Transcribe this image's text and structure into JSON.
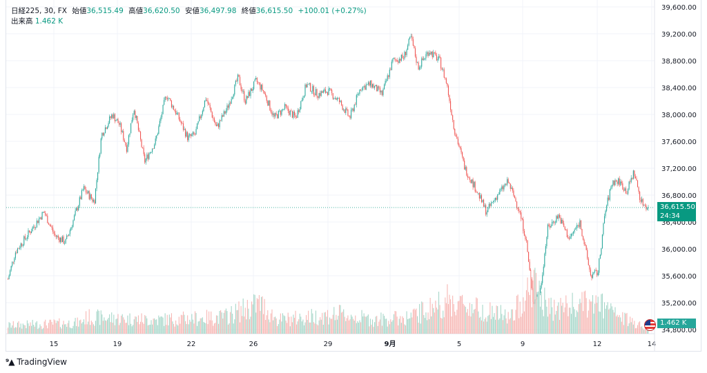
{
  "legend": {
    "symbol": "日経225, 30, FX",
    "open_label": "始値",
    "open": "36,515.49",
    "high_label": "高値",
    "high": "36,620.50",
    "low_label": "安値",
    "low": "36,497.98",
    "close_label": "終値",
    "close": "36,615.50",
    "change": "+100.01 (+0.27%)",
    "volume_label": "出来高",
    "volume": "1.462 K"
  },
  "price_tag": {
    "price": "36,615.50",
    "countdown": "24:34"
  },
  "volume_tag": "1.462 K",
  "brand": "TradingView",
  "colors": {
    "up": "#26a69a",
    "down": "#ef5350",
    "up_vol": "#a5d6c8",
    "down_vol": "#f7b6b3",
    "last": "#089981"
  },
  "chart_data": {
    "type": "candlestick",
    "yaxis_ticks": [
      "39,600.00",
      "39,200.00",
      "38,800.00",
      "38,400.00",
      "38,000.00",
      "37,600.00",
      "37,200.00",
      "36,800.00",
      "36,400.00",
      "36,000.00",
      "35,600.00",
      "35,200.00",
      "34,800.00"
    ],
    "xaxis_ticks": [
      "15",
      "19",
      "22",
      "26",
      "29",
      "9月",
      "5",
      "9",
      "12",
      "14"
    ],
    "ylim": [
      34800,
      39600
    ],
    "last_price": 36615.5,
    "price_path": [
      [
        0,
        35550
      ],
      [
        2,
        35950
      ],
      [
        6,
        36250
      ],
      [
        10,
        36550
      ],
      [
        13,
        36200
      ],
      [
        16,
        36100
      ],
      [
        18,
        36400
      ],
      [
        21,
        36900
      ],
      [
        24,
        36700
      ],
      [
        26,
        37700
      ],
      [
        29,
        38000
      ],
      [
        31,
        37850
      ],
      [
        33,
        37500
      ],
      [
        35,
        38100
      ],
      [
        38,
        37300
      ],
      [
        41,
        37600
      ],
      [
        44,
        38300
      ],
      [
        47,
        38000
      ],
      [
        50,
        37650
      ],
      [
        52,
        37700
      ],
      [
        55,
        38250
      ],
      [
        58,
        37800
      ],
      [
        61,
        38100
      ],
      [
        64,
        38550
      ],
      [
        66,
        38200
      ],
      [
        69,
        38500
      ],
      [
        71,
        38350
      ],
      [
        74,
        37950
      ],
      [
        77,
        38100
      ],
      [
        80,
        37950
      ],
      [
        83,
        38450
      ],
      [
        86,
        38300
      ],
      [
        89,
        38350
      ],
      [
        92,
        38200
      ],
      [
        95,
        37950
      ],
      [
        98,
        38400
      ],
      [
        101,
        38450
      ],
      [
        104,
        38300
      ],
      [
        107,
        38800
      ],
      [
        110,
        38850
      ],
      [
        112,
        39150
      ],
      [
        114,
        38700
      ],
      [
        117,
        38950
      ],
      [
        120,
        38800
      ],
      [
        122,
        38450
      ],
      [
        124,
        37800
      ],
      [
        127,
        37200
      ],
      [
        130,
        36900
      ],
      [
        133,
        36550
      ],
      [
        136,
        36800
      ],
      [
        139,
        37000
      ],
      [
        142,
        36600
      ],
      [
        144,
        36150
      ],
      [
        146,
        35200
      ],
      [
        148,
        35400
      ],
      [
        150,
        36300
      ],
      [
        153,
        36500
      ],
      [
        156,
        36150
      ],
      [
        159,
        36400
      ],
      [
        162,
        35600
      ],
      [
        164,
        35650
      ],
      [
        166,
        36550
      ],
      [
        168,
        37000
      ],
      [
        170,
        37000
      ],
      [
        172,
        36850
      ],
      [
        174,
        37150
      ],
      [
        176,
        36700
      ],
      [
        178,
        36615
      ]
    ],
    "volume_envelope": [
      [
        0,
        0.15
      ],
      [
        20,
        0.2
      ],
      [
        22,
        0.3
      ],
      [
        40,
        0.25
      ],
      [
        60,
        0.3
      ],
      [
        70,
        0.55
      ],
      [
        75,
        0.25
      ],
      [
        92,
        0.35
      ],
      [
        102,
        0.25
      ],
      [
        112,
        0.3
      ],
      [
        122,
        0.6
      ],
      [
        140,
        0.3
      ],
      [
        146,
        0.95
      ],
      [
        150,
        0.45
      ],
      [
        164,
        0.55
      ],
      [
        170,
        0.3
      ],
      [
        178,
        0.12
      ]
    ],
    "series": [
      {
        "name": "日経225, 30, FX",
        "type": "candlestick"
      }
    ]
  }
}
